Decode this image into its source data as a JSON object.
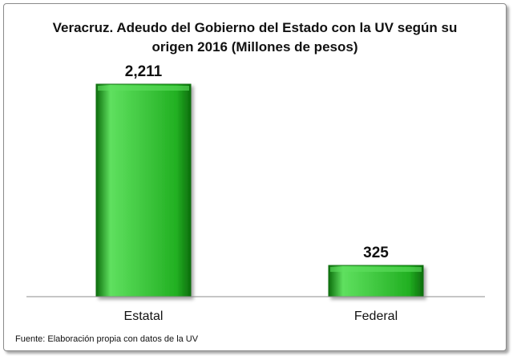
{
  "chart_data": {
    "type": "bar",
    "title_lines": [
      "Veracruz. Adeudo del Gobierno del Estado con la UV según su",
      "origen 2016 (Millones de pesos)"
    ],
    "categories": [
      "Estatal",
      "Federal"
    ],
    "values": [
      2211,
      325
    ],
    "data_labels": [
      "2,211",
      "325"
    ],
    "xlabel": "",
    "ylabel": "",
    "ylim": [
      0,
      2211
    ],
    "grid": false,
    "legend": "none",
    "bar_color": "#22b022",
    "bar_highlight": "#5fe05f",
    "bar_shadow": "#0d6e0d"
  },
  "source": "Fuente: Elaboración propia con datos de la UV"
}
